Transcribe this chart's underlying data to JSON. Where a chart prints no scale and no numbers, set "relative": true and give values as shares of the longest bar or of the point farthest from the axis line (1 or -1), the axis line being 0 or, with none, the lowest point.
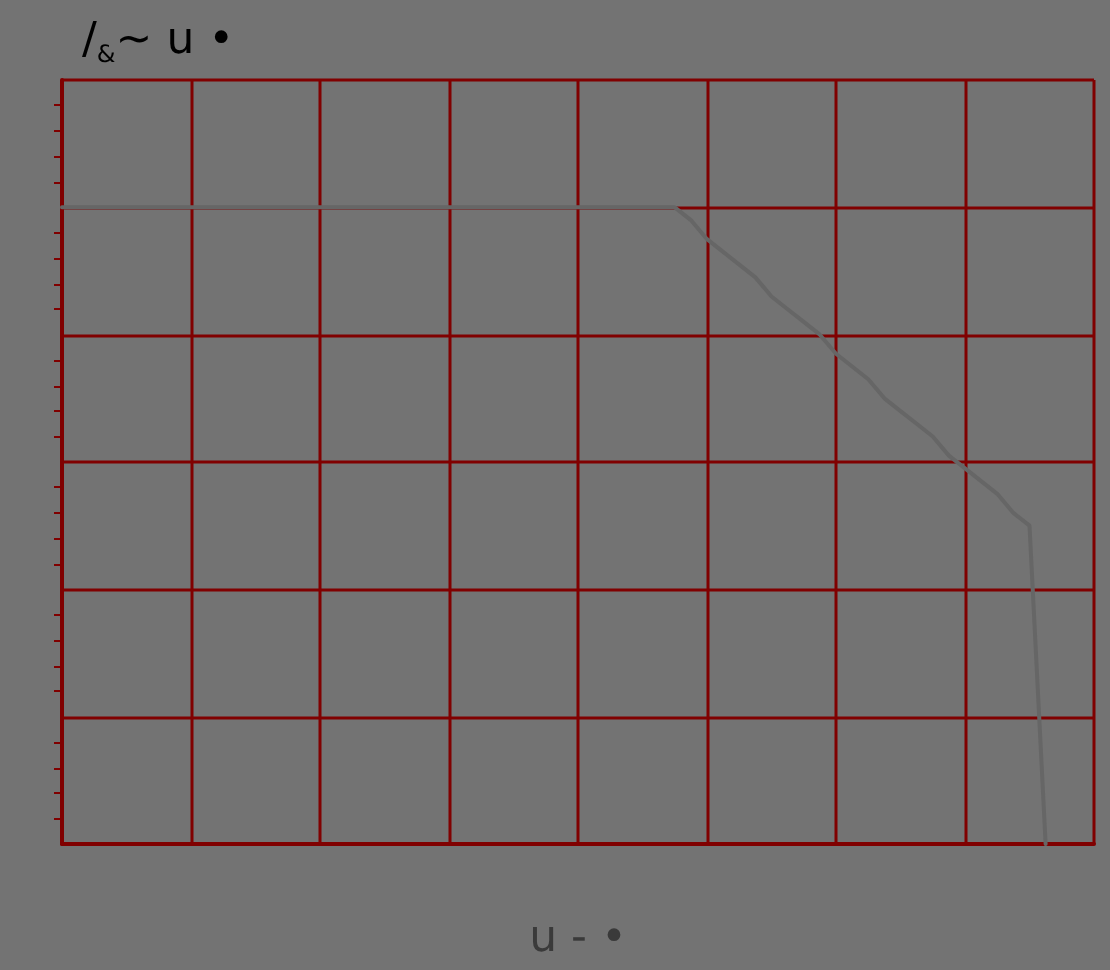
{
  "chart_data": {
    "type": "line",
    "title": "/$_{&}$~ u •",
    "xlabel": "u - •",
    "relative": true,
    "grid": true,
    "categories": [
      null,
      null,
      null,
      null,
      null,
      null,
      null,
      null,
      null,
      null,
      null,
      null,
      null,
      null,
      null,
      null,
      null,
      null,
      null,
      null,
      null,
      null,
      null,
      null,
      null,
      null,
      null,
      null,
      null,
      null,
      null,
      null,
      null,
      null,
      null,
      null,
      null,
      null,
      null,
      null,
      null,
      null,
      null,
      null,
      null,
      null,
      null,
      null,
      null,
      null,
      null,
      null,
      null,
      null,
      null,
      null,
      null,
      null,
      null,
      null,
      null,
      null,
      null,
      null,
      null
    ],
    "series": [
      {
        "color": "#666666",
        "values": [
          1,
          1,
          1,
          1,
          1,
          1,
          1,
          1,
          1,
          1,
          1,
          1,
          1,
          1,
          1,
          1,
          1,
          1,
          1,
          1,
          1,
          1,
          1,
          1,
          1,
          1,
          1,
          1,
          1,
          1,
          1,
          1,
          1,
          1,
          1,
          1,
          1,
          1,
          1,
          0.98,
          0.95,
          0.93,
          0.91,
          0.89,
          0.86,
          0.84,
          0.82,
          0.8,
          0.77,
          0.75,
          0.73,
          0.7,
          0.68,
          0.66,
          0.64,
          0.61,
          0.59,
          0.57,
          0.55,
          0.52,
          0.5,
          0,
          null,
          null,
          null
        ]
      }
    ]
  }
}
